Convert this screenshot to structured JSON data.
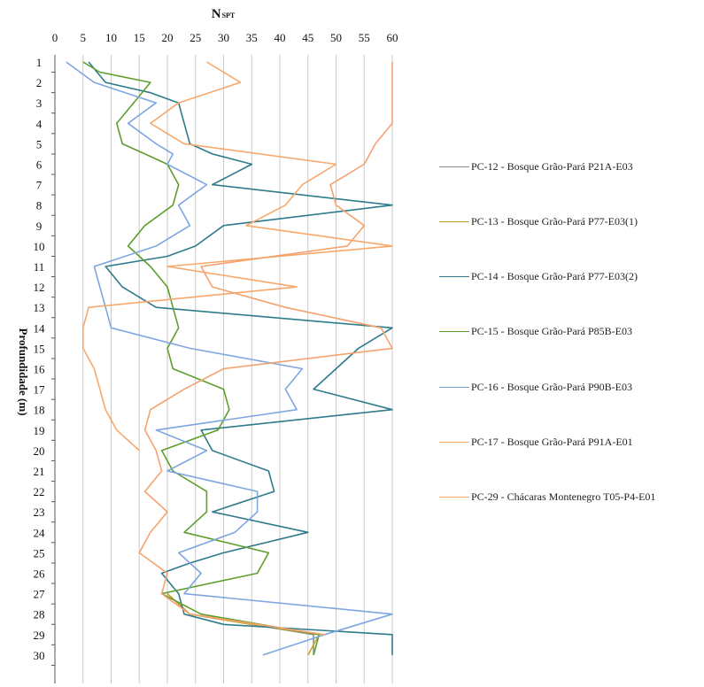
{
  "chart_data": {
    "type": "line",
    "title": "N",
    "title_subscript": "SPT",
    "ylabel": "Profundidade (m)",
    "xlim": [
      0,
      60
    ],
    "ylim": [
      1,
      30
    ],
    "x_ticks": [
      0,
      5,
      10,
      15,
      20,
      25,
      30,
      35,
      40,
      45,
      50,
      55,
      60
    ],
    "y_ticks": [
      1,
      2,
      3,
      4,
      5,
      6,
      7,
      8,
      9,
      10,
      11,
      12,
      13,
      14,
      15,
      16,
      17,
      18,
      19,
      20,
      21,
      22,
      23,
      24,
      25,
      26,
      27,
      28,
      29,
      30
    ],
    "grid": "vertical",
    "legend_position": "right",
    "series": [
      {
        "name": "PC-12 - Bosque Grão-Pará P21A-E03",
        "color": "#8c8c8c",
        "points": [
          [
            20,
            27
          ],
          [
            24,
            28
          ],
          [
            35,
            28.5
          ],
          [
            46,
            29
          ],
          [
            46,
            30
          ]
        ]
      },
      {
        "name": "PC-13 - Bosque Grão-Pará P77-E03(1)",
        "color": "#c9a227",
        "points": [
          [
            20,
            27
          ],
          [
            24,
            28
          ],
          [
            35,
            28.5
          ],
          [
            47,
            29
          ],
          [
            45,
            30
          ]
        ]
      },
      {
        "name": "PC-14 - Bosque Grão-Pará P77-E03(2)",
        "color": "#2e7b8c",
        "points": [
          [
            6,
            1
          ],
          [
            9,
            2
          ],
          [
            17,
            2.5
          ],
          [
            22,
            3
          ],
          [
            23,
            4
          ],
          [
            24,
            5
          ],
          [
            28,
            5.5
          ],
          [
            35,
            6
          ],
          [
            28,
            7
          ],
          [
            60,
            8
          ],
          [
            30,
            9
          ],
          [
            25,
            10
          ],
          [
            20,
            10.5
          ],
          [
            9,
            11
          ],
          [
            12,
            12
          ],
          [
            18,
            13
          ],
          [
            60,
            14
          ],
          [
            54,
            15
          ],
          [
            50,
            16
          ],
          [
            46,
            17
          ],
          [
            60,
            18
          ],
          [
            26,
            19
          ],
          [
            28,
            20
          ],
          [
            38,
            21
          ],
          [
            39,
            22
          ],
          [
            28,
            23
          ],
          [
            45,
            24
          ],
          [
            30,
            25
          ],
          [
            24,
            25.5
          ],
          [
            19,
            26
          ],
          [
            22,
            27
          ],
          [
            23,
            28
          ],
          [
            30,
            28.5
          ],
          [
            60,
            29
          ],
          [
            60,
            30
          ]
        ]
      },
      {
        "name": "PC-15 - Bosque Grão-Pará P85B-E03",
        "color": "#5e9e2b",
        "points": [
          [
            5,
            1
          ],
          [
            8,
            1.5
          ],
          [
            17,
            2
          ],
          [
            14,
            3
          ],
          [
            11,
            4
          ],
          [
            12,
            5
          ],
          [
            16,
            5.5
          ],
          [
            20,
            6
          ],
          [
            22,
            7
          ],
          [
            21,
            8
          ],
          [
            16,
            9
          ],
          [
            13,
            10
          ],
          [
            17,
            11
          ],
          [
            20,
            12
          ],
          [
            21,
            13
          ],
          [
            22,
            14
          ],
          [
            20,
            15
          ],
          [
            21,
            16
          ],
          [
            30,
            17
          ],
          [
            31,
            18
          ],
          [
            29,
            19
          ],
          [
            19,
            20
          ],
          [
            21,
            21
          ],
          [
            27,
            22
          ],
          [
            27,
            23
          ],
          [
            23,
            24
          ],
          [
            38,
            25
          ],
          [
            36,
            26
          ],
          [
            19,
            27
          ],
          [
            26,
            28
          ],
          [
            47,
            29
          ],
          [
            46,
            30
          ]
        ]
      },
      {
        "name": "PC-16 - Bosque Grão-Pará P90B-E03",
        "color": "#7ea6e0",
        "points": [
          [
            2,
            1
          ],
          [
            7,
            2
          ],
          [
            18,
            3
          ],
          [
            13,
            4
          ],
          [
            18,
            5
          ],
          [
            21,
            5.5
          ],
          [
            20,
            6
          ],
          [
            27,
            7
          ],
          [
            22,
            8
          ],
          [
            24,
            9
          ],
          [
            18,
            10
          ],
          [
            7,
            11
          ],
          [
            8,
            12
          ],
          [
            9,
            13
          ],
          [
            10,
            14
          ],
          [
            24,
            15
          ],
          [
            44,
            16
          ],
          [
            41,
            17
          ],
          [
            43,
            18
          ],
          [
            18,
            19
          ],
          [
            27,
            20
          ],
          [
            20,
            21
          ],
          [
            36,
            22
          ],
          [
            36,
            23
          ],
          [
            32,
            24
          ],
          [
            22,
            25
          ],
          [
            26,
            26
          ],
          [
            23,
            27
          ],
          [
            60,
            28
          ],
          [
            48,
            29
          ],
          [
            37,
            30
          ]
        ]
      },
      {
        "name": "PC-17 - Bosque Grão-Pará P91A-E01",
        "color": "#f7a86a",
        "points": [
          [
            27,
            1
          ],
          [
            33,
            2
          ],
          [
            22,
            3
          ],
          [
            17,
            4
          ],
          [
            23,
            5
          ],
          [
            50,
            6
          ],
          [
            44,
            7
          ],
          [
            41,
            8
          ],
          [
            34,
            9
          ],
          [
            60,
            10
          ],
          [
            20,
            11
          ],
          [
            43,
            12
          ],
          [
            6,
            13
          ],
          [
            5,
            14
          ],
          [
            5,
            15
          ],
          [
            7,
            16
          ],
          [
            8,
            17
          ],
          [
            9,
            18
          ],
          [
            11,
            19
          ],
          [
            15,
            20
          ]
        ]
      },
      {
        "name": "PC-29 - Chácaras Montenegro T05-P4-E01",
        "color": "#f5a26e",
        "points": [
          [
            60,
            1
          ],
          [
            60,
            2
          ],
          [
            60,
            3
          ],
          [
            60,
            4
          ],
          [
            57,
            5
          ],
          [
            55,
            6
          ],
          [
            49,
            7
          ],
          [
            50,
            8
          ],
          [
            55,
            9
          ],
          [
            52,
            10
          ],
          [
            26,
            11
          ],
          [
            28,
            12
          ],
          [
            41,
            13
          ],
          [
            58,
            14
          ],
          [
            60,
            15
          ],
          [
            30,
            16
          ],
          [
            23,
            17
          ],
          [
            17,
            18
          ],
          [
            16,
            19
          ],
          [
            18,
            20
          ],
          [
            19,
            21
          ],
          [
            16,
            22
          ],
          [
            20,
            23
          ],
          [
            17,
            24
          ],
          [
            15,
            25
          ],
          [
            20,
            26
          ],
          [
            19,
            27
          ],
          [
            24,
            28
          ],
          [
            48,
            29
          ]
        ]
      }
    ]
  }
}
